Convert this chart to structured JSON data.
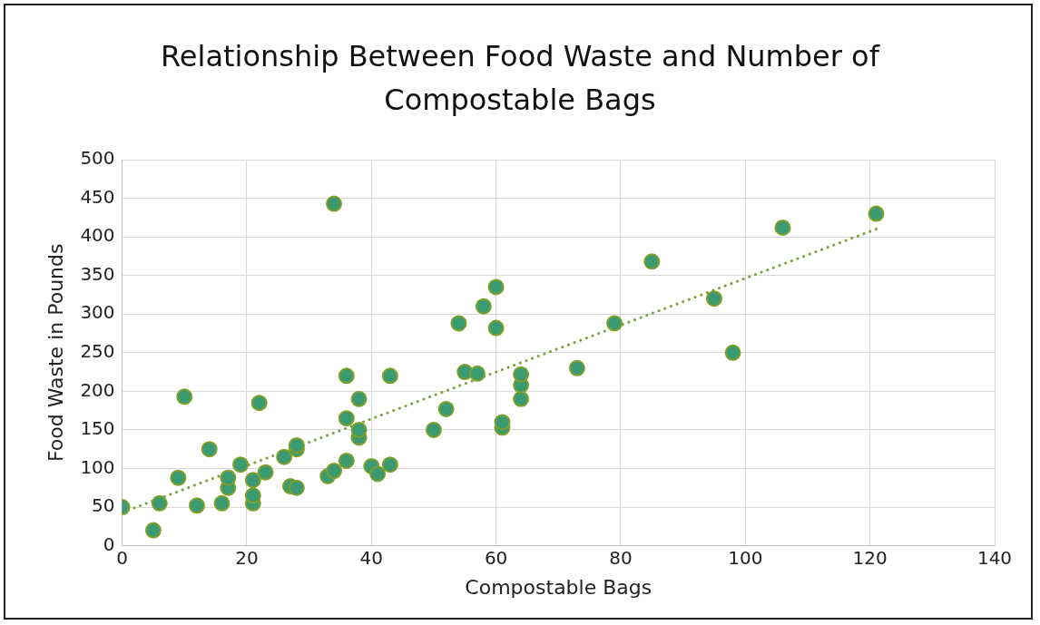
{
  "chart_data": {
    "type": "scatter",
    "title": "Relationship Between Food Waste and Number of Compostable Bags",
    "xlabel": "Compostable Bags",
    "ylabel": "Food Waste in Pounds",
    "xlim": [
      0,
      140
    ],
    "xticks": [
      0,
      20,
      40,
      60,
      80,
      100,
      120,
      140
    ],
    "ylim": [
      0,
      500
    ],
    "yticks": [
      0,
      50,
      100,
      150,
      200,
      250,
      300,
      350,
      400,
      450,
      500
    ],
    "grid": true,
    "legend": false,
    "marker": "circle",
    "series": [
      {
        "type": "scatter",
        "color": "#3a9a72",
        "x": [
          0,
          5,
          6,
          9,
          10,
          12,
          14,
          16,
          17,
          17,
          19,
          21,
          21,
          21,
          22,
          23,
          26,
          27,
          28,
          28,
          28,
          33,
          34,
          34,
          36,
          36,
          36,
          38,
          38,
          38,
          40,
          41,
          43,
          43,
          50,
          52,
          54,
          55,
          57,
          58,
          60,
          60,
          61,
          61,
          64,
          64,
          64,
          73,
          79,
          85,
          95,
          98,
          106,
          121
        ],
        "values": [
          50,
          20,
          55,
          88,
          193,
          52,
          125,
          55,
          75,
          88,
          105,
          55,
          65,
          85,
          185,
          95,
          115,
          77,
          75,
          125,
          130,
          90,
          443,
          97,
          110,
          165,
          220,
          140,
          150,
          190,
          103,
          93,
          105,
          220,
          150,
          177,
          288,
          225,
          223,
          310,
          335,
          282,
          153,
          160,
          190,
          208,
          222,
          230,
          288,
          368,
          320,
          250,
          412,
          430
        ]
      },
      {
        "type": "line",
        "color": "#7aa33a",
        "line_style": "dotted",
        "marker": "none",
        "x": [
          0,
          121
        ],
        "values": [
          43,
          410
        ]
      }
    ]
  }
}
